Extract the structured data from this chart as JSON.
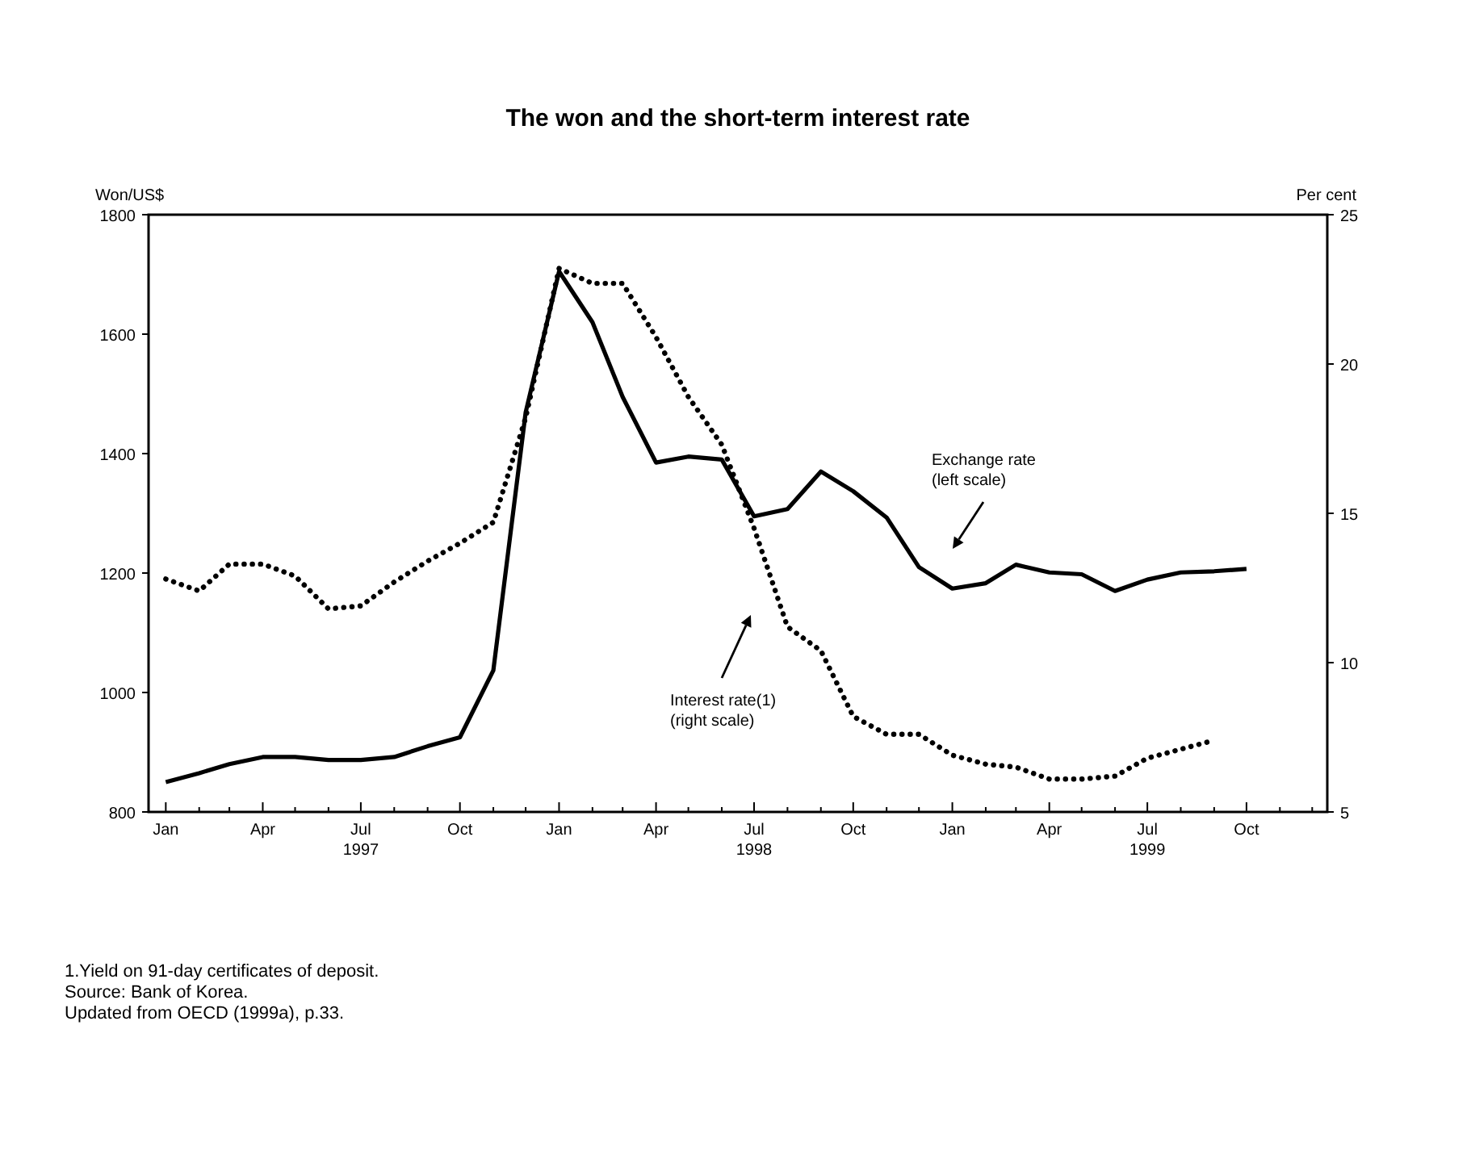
{
  "chart_data": {
    "type": "line",
    "title": "The won and the short-term interest rate",
    "ylabel": "Won/US$",
    "y2label": "Per cent",
    "x": [
      "1997-01",
      "1997-02",
      "1997-03",
      "1997-04",
      "1997-05",
      "1997-06",
      "1997-07",
      "1997-08",
      "1997-09",
      "1997-10",
      "1997-11",
      "1997-12",
      "1998-01",
      "1998-02",
      "1998-03",
      "1998-04",
      "1998-05",
      "1998-06",
      "1998-07",
      "1998-08",
      "1998-09",
      "1998-10",
      "1998-11",
      "1998-12",
      "1999-01",
      "1999-02",
      "1999-03",
      "1999-04",
      "1999-05",
      "1999-06",
      "1999-07",
      "1999-08",
      "1999-09",
      "1999-10"
    ],
    "series": [
      {
        "color": "#000000",
        "line_style": "solid",
        "values": [
          850,
          865,
          880,
          892,
          892,
          887,
          887,
          892,
          910,
          925,
          1037,
          1469,
          1705,
          1620,
          1495,
          1385,
          1395,
          1390,
          1295,
          1307,
          1370,
          1337,
          1293,
          1210,
          1174,
          1183,
          1214,
          1201,
          1198,
          1170,
          1189,
          1201,
          1203,
          1207
        ]
      },
      {
        "color": "#000000",
        "line_style": "dotted",
        "axis": "y2",
        "values": [
          12.8,
          12.4,
          13.3,
          13.3,
          12.9,
          11.8,
          11.9,
          12.7,
          13.4,
          14.0,
          14.7,
          18.2,
          23.2,
          22.7,
          22.7,
          20.9,
          18.9,
          17.3,
          14.5,
          11.2,
          10.4,
          8.2,
          7.6,
          7.6,
          6.9,
          6.6,
          6.5,
          6.1,
          6.1,
          6.2,
          6.8,
          7.1,
          7.4,
          null
        ]
      }
    ],
    "xlim": [
      "1996-12-16",
      "1999-12-15"
    ],
    "xticks": [
      {
        "value": "1997-01",
        "label": "Jan"
      },
      {
        "value": "1997-02",
        "label": null
      },
      {
        "value": "1997-03",
        "label": null
      },
      {
        "value": "1997-04",
        "label": "Apr"
      },
      {
        "value": "1997-05",
        "label": null
      },
      {
        "value": "1997-06",
        "label": null
      },
      {
        "value": "1997-07",
        "label": "Jul\n1997"
      },
      {
        "value": "1997-08",
        "label": null
      },
      {
        "value": "1997-09",
        "label": null
      },
      {
        "value": "1997-10",
        "label": "Oct"
      },
      {
        "value": "1997-11",
        "label": null
      },
      {
        "value": "1997-12",
        "label": null
      },
      {
        "value": "1998-01",
        "label": "Jan"
      },
      {
        "value": "1998-02",
        "label": null
      },
      {
        "value": "1998-03",
        "label": null
      },
      {
        "value": "1998-04",
        "label": "Apr"
      },
      {
        "value": "1998-05",
        "label": null
      },
      {
        "value": "1998-06",
        "label": null
      },
      {
        "value": "1998-07",
        "label": "Jul\n1998"
      },
      {
        "value": "1998-08",
        "label": null
      },
      {
        "value": "1998-09",
        "label": null
      },
      {
        "value": "1998-10",
        "label": "Oct"
      },
      {
        "value": "1998-11",
        "label": null
      },
      {
        "value": "1998-12",
        "label": null
      },
      {
        "value": "1999-01",
        "label": "Jan"
      },
      {
        "value": "1999-02",
        "label": null
      },
      {
        "value": "1999-03",
        "label": null
      },
      {
        "value": "1999-04",
        "label": "Apr"
      },
      {
        "value": "1999-05",
        "label": null
      },
      {
        "value": "1999-06",
        "label": null
      },
      {
        "value": "1999-07",
        "label": "Jul\n1999"
      },
      {
        "value": "1999-08",
        "label": null
      },
      {
        "value": "1999-09",
        "label": null
      },
      {
        "value": "1999-10",
        "label": "Oct"
      },
      {
        "value": "1999-11",
        "label": null
      },
      {
        "value": "1999-12",
        "label": null
      }
    ],
    "ylim": [
      800,
      1800
    ],
    "yticks": [
      800,
      1000,
      1200,
      1400,
      1600,
      1800
    ],
    "y2lim": [
      5,
      25
    ],
    "y2ticks": [
      5,
      10,
      15,
      20,
      25
    ],
    "annotations": [
      "Exchange rate\n(left scale)",
      "Interest rate(1)\n(right scale)",
      "1.Yield on 91-day certificates of deposit.",
      "Source: Bank of Korea.",
      "Updated from OECD (1999a), p.33."
    ]
  }
}
